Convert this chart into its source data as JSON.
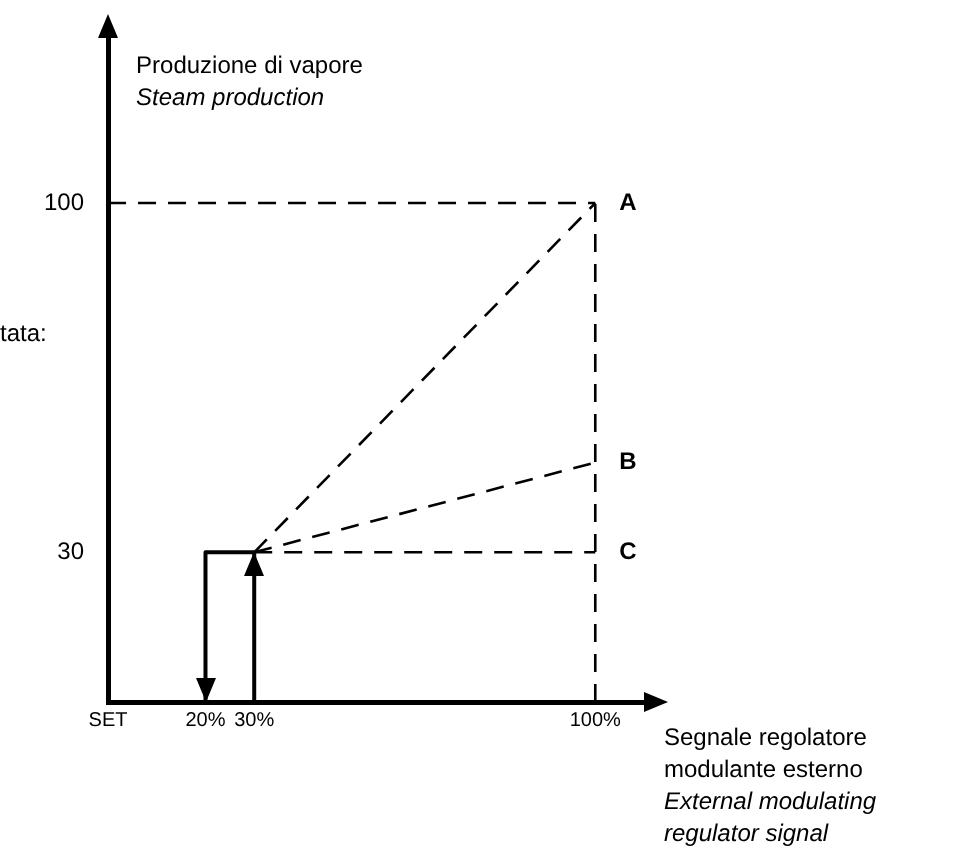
{
  "chart_data": {
    "type": "line",
    "xlabel": "Segnale regolatore\nmodulante esterno\nExternal modulating\nregulator signal",
    "ylabel": "Produzione di vapore\nSteam production",
    "annotations": [
      "tata:"
    ],
    "xlim": [
      0,
      110
    ],
    "ylim": [
      0,
      133
    ],
    "xticks": [
      {
        "value": 0,
        "label": "SET"
      },
      {
        "value": 20,
        "label": "20%"
      },
      {
        "value": 30,
        "label": "30%"
      },
      {
        "value": 100,
        "label": "100%"
      }
    ],
    "yticks": [
      30,
      100
    ],
    "grid": false,
    "legend": false,
    "marker": "none",
    "series": [
      {
        "name": "A",
        "color": "#000000",
        "x": [
          30,
          100
        ],
        "values": [
          30,
          100
        ],
        "line_style": "dashed"
      },
      {
        "name": "B",
        "color": "#000000",
        "x": [
          30,
          100
        ],
        "values": [
          30,
          48
        ],
        "line_style": "dashed"
      },
      {
        "name": "C",
        "color": "#000000",
        "x": [
          30,
          100
        ],
        "values": [
          30,
          30
        ],
        "line_style": "dashed"
      },
      {
        "color": "#000000",
        "x": [
          0,
          100
        ],
        "values": [
          100,
          100
        ],
        "line_style": "dashed"
      },
      {
        "color": "#000000",
        "x": [
          100,
          100
        ],
        "values": [
          0,
          100
        ],
        "line_style": "dashed"
      },
      {
        "color": "#000000",
        "x": [
          30,
          30,
          20,
          20
        ],
        "values": [
          0,
          30,
          30,
          0
        ],
        "line_style": "solid"
      }
    ]
  }
}
